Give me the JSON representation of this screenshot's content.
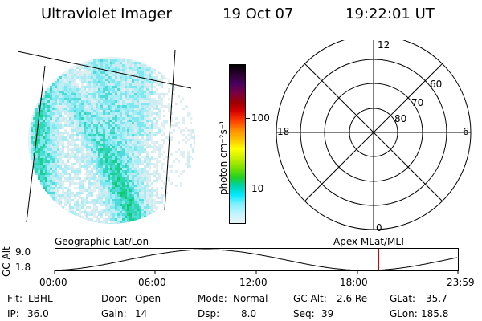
{
  "header": {
    "instrument": "Ultraviolet Imager",
    "date": "19 Oct 07",
    "time": "19:22:01 UT"
  },
  "colorbar": {
    "label": "photon cm⁻²s⁻¹",
    "ticks": [
      "100",
      "10"
    ],
    "scale": "log",
    "colors_top_to_bottom": [
      "#000000",
      "#2a0030",
      "#4a0060",
      "#7a0040",
      "#a00000",
      "#d40000",
      "#ff3a00",
      "#ff8a00",
      "#ffc000",
      "#ffff00",
      "#c8f000",
      "#7ce000",
      "#22d020",
      "#00d2a0",
      "#00e8ff",
      "#80f0ff",
      "#c0f4ff",
      "#e8f4f8"
    ]
  },
  "polar": {
    "labels_clock": {
      "top": "12",
      "left": "18",
      "right": "6",
      "bottom": "0"
    },
    "labels_lat": [
      "60",
      "70",
      "80"
    ]
  },
  "timeline": {
    "left_title": "Geographic Lat/Lon",
    "right_title": "Apex MLat/MLT",
    "ylabel": "GC Alt",
    "yticks": [
      "9.0",
      "1.8"
    ],
    "xticks": [
      "00:00",
      "06:00",
      "12:00",
      "18:00",
      "23:59"
    ],
    "marker_color": "#cc0000"
  },
  "info": {
    "flt_label": "Flt:",
    "flt_value": "LBHL",
    "ip_label": "IP:",
    "ip_value": "36.0",
    "door_label": "Door:",
    "door_value": "Open",
    "gain_label": "Gain:",
    "gain_value": "14",
    "mode_label": "Mode:",
    "mode_value": "Normal",
    "dsp_label": "Dsp:",
    "dsp_value": "8.0",
    "gcalt_label": "GC Alt:",
    "gcalt_value": "2.6 Re",
    "seq_label": "Seq:",
    "seq_value": "39",
    "glat_label": "GLat:",
    "glat_value": "35.7",
    "glon_label": "GLon:",
    "glon_value": "185.8"
  }
}
